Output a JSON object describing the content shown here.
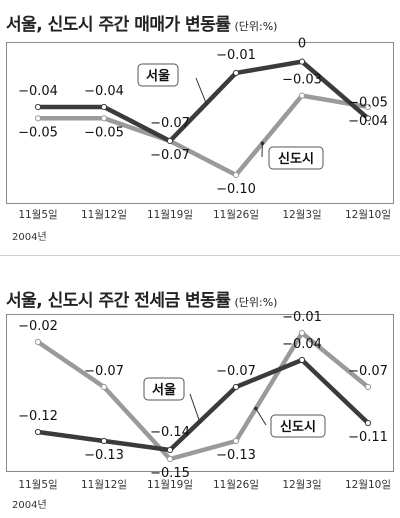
{
  "charts": [
    {
      "title": "서울, 신도시 주간 매매가 변동률",
      "unit": "(단위:%)",
      "year_label": "2004년",
      "chart_data": {
        "type": "line",
        "categories": [
          "11월5일",
          "11월12일",
          "11월19일",
          "11월26일",
          "12월3일",
          "12월10일"
        ],
        "series": [
          {
            "name": "서울",
            "values": [
              -0.04,
              -0.04,
              -0.07,
              -0.01,
              0,
              -0.05
            ],
            "labels": [
              "-0.04",
              "-0.04",
              "-0.07",
              "-0.01",
              "0",
              "-0.05"
            ],
            "color": "#3b3b3b"
          },
          {
            "name": "신도시",
            "values": [
              -0.05,
              -0.05,
              -0.07,
              -0.1,
              -0.03,
              -0.04
            ],
            "labels": [
              "-0.05",
              "-0.05",
              "-0.07",
              "-0.10",
              "-0.03",
              "-0.04"
            ],
            "color": "#9a9a9a"
          }
        ],
        "ylim": [
          -0.115,
          0.012
        ]
      }
    },
    {
      "title": "서울, 신도시 주간 전세금 변동률",
      "unit": "(단위:%)",
      "year_label": "2004년",
      "chart_data": {
        "type": "line",
        "categories": [
          "11월5일",
          "11월12일",
          "11월19일",
          "11월26일",
          "12월3일",
          "12월10일"
        ],
        "series": [
          {
            "name": "서울",
            "values": [
              -0.12,
              -0.13,
              -0.14,
              -0.07,
              -0.04,
              -0.11
            ],
            "labels": [
              "-0.12",
              "-0.13",
              "-0.14",
              "-0.07",
              "-0.04",
              "-0.11"
            ],
            "color": "#3b3b3b"
          },
          {
            "name": "신도시",
            "values": [
              -0.02,
              -0.07,
              -0.15,
              -0.13,
              -0.01,
              -0.07
            ],
            "labels": [
              "-0.02",
              "-0.07",
              "-0.15",
              "-0.13",
              "-0.01",
              "-0.07"
            ],
            "color": "#9a9a9a"
          }
        ],
        "ylim": [
          -0.16,
          0.0
        ]
      }
    }
  ]
}
